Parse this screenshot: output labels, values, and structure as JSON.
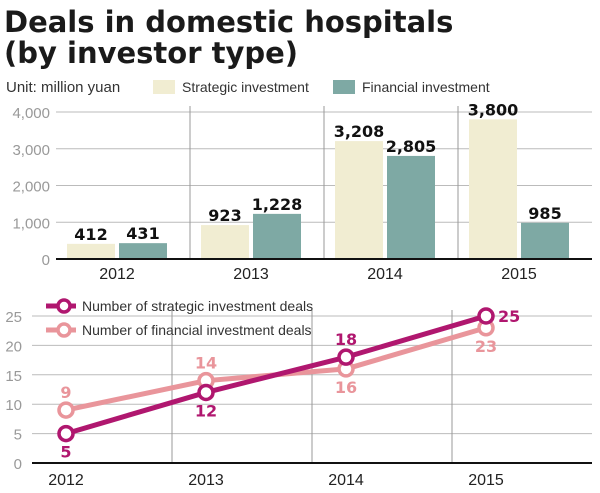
{
  "title_line1": "Deals in domestic hospitals",
  "title_line2": "(by investor type)",
  "chart_data": [
    {
      "type": "bar",
      "unit": "Unit: million yuan",
      "categories": [
        "2012",
        "2013",
        "2014",
        "2015"
      ],
      "series": [
        {
          "name": "Strategic investment",
          "values": [
            412,
            923,
            3208,
            3800
          ],
          "labels": [
            "412",
            "923",
            "3,208",
            "3,800"
          ],
          "color": "#f1edd2"
        },
        {
          "name": "Financial investment",
          "values": [
            431,
            1228,
            2805,
            985
          ],
          "labels": [
            "431",
            "1,228",
            "2,805",
            "985"
          ],
          "color": "#7ea9a4"
        }
      ],
      "ylim": [
        0,
        4000
      ],
      "yticks": [
        0,
        1000,
        2000,
        3000,
        4000
      ],
      "ytick_labels": [
        "0",
        "1,000",
        "2,000",
        "3,000",
        "4,000"
      ],
      "grid": true,
      "legend": "top"
    },
    {
      "type": "line",
      "categories": [
        "2012",
        "2013",
        "2014",
        "2015"
      ],
      "series": [
        {
          "name": "Number of strategic investment deals",
          "values": [
            5,
            12,
            18,
            25
          ],
          "color": "#b0176f"
        },
        {
          "name": "Number of financial investment deals",
          "values": [
            9,
            14,
            16,
            23
          ],
          "color": "#e9959b"
        }
      ],
      "ylim": [
        0,
        25
      ],
      "yticks": [
        0,
        5,
        10,
        15,
        20,
        25
      ],
      "grid": true,
      "legend": "top-left"
    }
  ]
}
